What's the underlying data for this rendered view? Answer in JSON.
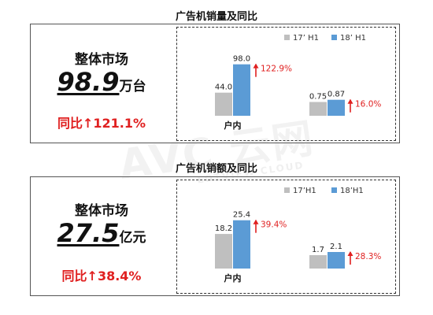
{
  "sections": [
    {
      "title": "广告机销量及同比",
      "summary": {
        "label": "整体市场",
        "value": "98.9",
        "unit": "万台",
        "growth_label": "同比",
        "growth_value": "121.1%"
      },
      "colors": {
        "s17": "#bfbfbf",
        "s18": "#5b9bd5",
        "up": "#e02020"
      }
    },
    {
      "title": "广告机销额及同比",
      "summary": {
        "label": "整体市场",
        "value": "27.5",
        "unit": "亿元",
        "growth_label": "同比",
        "growth_value": "38.4%"
      },
      "colors": {
        "s17": "#bfbfbf",
        "s18": "#5b9bd5",
        "up": "#e02020"
      }
    }
  ],
  "watermark": {
    "main": "AVC 云网",
    "sub": "LOTVIEW CLOUD"
  },
  "chart_data": [
    {
      "type": "bar",
      "categories": [
        "户内",
        ""
      ],
      "series": [
        {
          "name": "17’ H1",
          "values": [
            44.0,
            0.75
          ]
        },
        {
          "name": "18’ H1",
          "values": [
            98.0,
            0.87
          ]
        }
      ],
      "value_labels": {
        "17’ H1": [
          "44.0",
          "0.75"
        ],
        "18’ H1": [
          "98.0",
          "0.87"
        ]
      },
      "growth": [
        "122.9%",
        "16.0%"
      ],
      "ylim_groups": [
        [
          0,
          105
        ],
        [
          0,
          3
        ]
      ],
      "legend_position": "top-right"
    },
    {
      "type": "bar",
      "categories": [
        "户内",
        ""
      ],
      "series": [
        {
          "name": "17’H1",
          "values": [
            18.2,
            1.7
          ]
        },
        {
          "name": "18’H1",
          "values": [
            25.4,
            2.1
          ]
        }
      ],
      "value_labels": {
        "17’H1": [
          "18.2",
          "1.7"
        ],
        "18’H1": [
          "25.4",
          "2.1"
        ]
      },
      "growth": [
        "39.4%",
        "28.3%"
      ],
      "ylim_groups": [
        [
          0,
          29
        ],
        [
          0,
          7
        ]
      ],
      "legend_position": "top-right"
    }
  ]
}
